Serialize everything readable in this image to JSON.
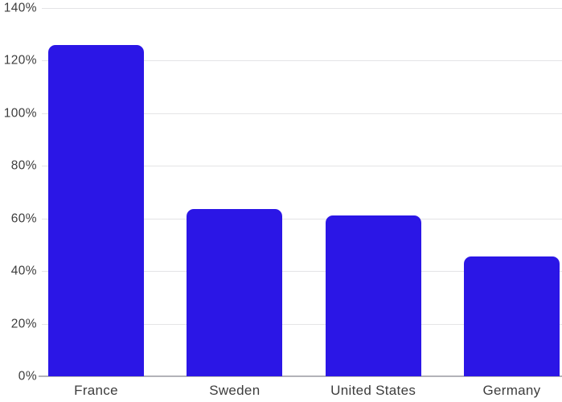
{
  "chart_data": {
    "type": "bar",
    "title": "",
    "xlabel": "",
    "ylabel": "",
    "categories": [
      "France",
      "Sweden",
      "United States",
      "Germany"
    ],
    "values": [
      126,
      63.5,
      61,
      45.5
    ],
    "value_unit": "%",
    "ylim": [
      0,
      140
    ],
    "ytick_step": 20,
    "ytick_labels": [
      "0%",
      "20%",
      "40%",
      "60%",
      "80%",
      "100%",
      "120%",
      "140%"
    ],
    "grid": true,
    "legend": false,
    "colors": {
      "bar": "#2b16e6",
      "gridline": "#e4e4e6",
      "baseline": "#b3b3b8",
      "label_text": "#3d3d3d"
    }
  }
}
